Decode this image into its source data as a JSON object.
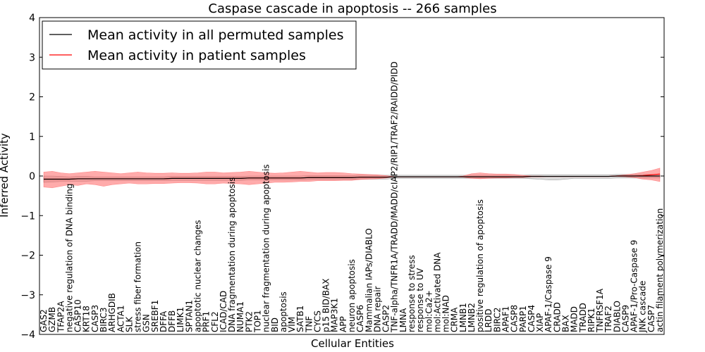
{
  "chart_data": {
    "type": "line",
    "title": "Caspase cascade in apoptosis -- 266 samples",
    "xlabel": "Cellular Entities",
    "ylabel": "Inferred Activity",
    "ylim": [
      -4,
      4
    ],
    "yticks": [
      -4,
      -3,
      -2,
      -1,
      0,
      1,
      2,
      3,
      4
    ],
    "grid": false,
    "legend_position": "top-left",
    "legend": [
      "Mean activity in all permuted samples",
      "Mean activity in patient samples"
    ],
    "categories": [
      "GAS2",
      "GZMB",
      "TFAP2A",
      "negative regulation of DNA binding",
      "CASP10",
      "KRT18",
      "CASP3",
      "BIRC3",
      "ARHGDIB",
      "ACTA1",
      "SLK",
      "stress fiber formation",
      "GSN",
      "SREBF1",
      "DFFA",
      "DFFB",
      "LIMK1",
      "SPTAN1",
      "apoptotic nuclear changes",
      "PRF1",
      "CFL2",
      "ICAD/CAD",
      "DNA fragmentation during apoptosis",
      "NUMA1",
      "PTK2",
      "TOP1",
      "nuclear fragmentation during apoptosis",
      "BID",
      "apoptosis",
      "VIM",
      "SATB1",
      "TNF",
      "CYCS",
      "p15 BID/BAX",
      "MAP3K1",
      "APP",
      "neuron apoptosis",
      "CASP6",
      "Mammalian IAPs/DIABLO",
      "DNA repair",
      "CASP2",
      "TNF-alpha/TNFR1A/TRADD/MADD/cIAP2/RIP1/TRAF2/RAIDD/PIDD",
      "LMNA",
      "response to stress",
      "response to UV",
      "mol:Ca2+",
      "mol:Activated DNA",
      "mol:NAD",
      "CRMA",
      "LMNB1",
      "LMNB2",
      "positive regulation of apoptosis",
      "LRDD",
      "BIRC2",
      "APAF1",
      "CASP8",
      "PARP1",
      "CASP4",
      "XIAP",
      "APAF-1/Caspase 9",
      "CRADD",
      "BAX",
      "MADD",
      "TRADD",
      "RIPK1",
      "TNFRSF1A",
      "TRAF2",
      "DIABLO",
      "CASP9",
      "APAF-1/Pro-Caspase 9",
      "JNK cascade",
      "CASP7",
      "actin filament polymerization"
    ],
    "series": [
      {
        "name": "Mean activity in all permuted samples",
        "color": "#000000",
        "band_color": "#cccccc",
        "values": [
          -0.08,
          -0.08,
          -0.08,
          -0.08,
          -0.07,
          -0.07,
          -0.07,
          -0.07,
          -0.07,
          -0.07,
          -0.07,
          -0.07,
          -0.07,
          -0.07,
          -0.07,
          -0.06,
          -0.06,
          -0.06,
          -0.06,
          -0.06,
          -0.06,
          -0.06,
          -0.06,
          -0.06,
          -0.05,
          -0.05,
          -0.05,
          -0.05,
          -0.05,
          -0.05,
          -0.05,
          -0.04,
          -0.04,
          -0.04,
          -0.04,
          -0.04,
          -0.04,
          -0.03,
          -0.03,
          -0.03,
          -0.03,
          -0.02,
          -0.02,
          -0.02,
          -0.02,
          -0.02,
          -0.02,
          -0.02,
          -0.02,
          -0.02,
          -0.02,
          -0.02,
          -0.02,
          -0.02,
          -0.02,
          -0.02,
          -0.02,
          -0.01,
          -0.01,
          -0.01,
          -0.01,
          -0.01,
          -0.01,
          -0.01,
          -0.01,
          -0.01,
          -0.01,
          0.0,
          0.0,
          0.0,
          0.0,
          0.0,
          0.0
        ],
        "lower": [
          -0.16,
          -0.15,
          -0.14,
          -0.14,
          -0.13,
          -0.13,
          -0.12,
          -0.12,
          -0.12,
          -0.12,
          -0.12,
          -0.12,
          -0.12,
          -0.12,
          -0.12,
          -0.11,
          -0.11,
          -0.11,
          -0.11,
          -0.11,
          -0.11,
          -0.11,
          -0.11,
          -0.11,
          -0.1,
          -0.1,
          -0.1,
          -0.1,
          -0.1,
          -0.1,
          -0.1,
          -0.09,
          -0.09,
          -0.09,
          -0.09,
          -0.09,
          -0.09,
          -0.08,
          -0.08,
          -0.08,
          -0.08,
          -0.06,
          -0.06,
          -0.06,
          -0.06,
          -0.06,
          -0.06,
          -0.06,
          -0.06,
          -0.06,
          -0.06,
          -0.06,
          -0.06,
          -0.06,
          -0.06,
          -0.06,
          -0.06,
          -0.07,
          -0.08,
          -0.1,
          -0.1,
          -0.08,
          -0.06,
          -0.06,
          -0.06,
          -0.06,
          -0.06,
          -0.05,
          -0.05,
          -0.05,
          -0.05,
          -0.05,
          -0.05
        ],
        "upper": [
          0.0,
          0.0,
          -0.01,
          -0.02,
          -0.01,
          -0.01,
          -0.02,
          -0.02,
          -0.02,
          -0.02,
          -0.02,
          -0.02,
          -0.02,
          -0.02,
          -0.02,
          -0.01,
          -0.01,
          -0.01,
          -0.01,
          -0.01,
          -0.01,
          -0.01,
          -0.01,
          -0.01,
          0.0,
          0.0,
          0.0,
          0.0,
          0.0,
          0.0,
          0.0,
          0.01,
          0.01,
          0.01,
          0.01,
          0.01,
          0.01,
          0.02,
          0.02,
          0.02,
          0.02,
          0.02,
          0.02,
          0.02,
          0.02,
          0.02,
          0.02,
          0.02,
          0.02,
          0.02,
          0.02,
          0.02,
          0.02,
          0.02,
          0.02,
          0.02,
          0.02,
          0.03,
          0.03,
          0.03,
          0.03,
          0.03,
          0.03,
          0.03,
          0.03,
          0.03,
          0.03,
          0.04,
          0.04,
          0.04,
          0.04,
          0.04,
          0.04
        ]
      },
      {
        "name": "Mean activity in patient samples",
        "color": "#ff0000",
        "band_color": "#ff6666",
        "values": [
          -0.08,
          -0.08,
          -0.08,
          -0.08,
          -0.07,
          -0.07,
          -0.07,
          -0.07,
          -0.07,
          -0.07,
          -0.07,
          -0.07,
          -0.07,
          -0.07,
          -0.07,
          -0.06,
          -0.06,
          -0.06,
          -0.06,
          -0.06,
          -0.06,
          -0.06,
          -0.06,
          -0.06,
          -0.05,
          -0.05,
          -0.05,
          -0.05,
          -0.05,
          -0.05,
          -0.05,
          -0.04,
          -0.04,
          -0.04,
          -0.04,
          -0.04,
          -0.04,
          -0.03,
          -0.03,
          -0.03,
          -0.03,
          -0.02,
          -0.02,
          -0.02,
          -0.02,
          -0.02,
          -0.02,
          -0.02,
          -0.02,
          -0.02,
          -0.02,
          -0.02,
          -0.02,
          -0.02,
          -0.02,
          -0.02,
          -0.02,
          -0.01,
          -0.01,
          -0.01,
          -0.01,
          -0.01,
          -0.01,
          -0.01,
          -0.01,
          -0.01,
          -0.01,
          0.0,
          0.0,
          0.0,
          0.01,
          0.03,
          0.05
        ],
        "lower": [
          -0.28,
          -0.3,
          -0.26,
          -0.22,
          -0.24,
          -0.2,
          -0.22,
          -0.26,
          -0.22,
          -0.2,
          -0.18,
          -0.2,
          -0.2,
          -0.19,
          -0.19,
          -0.18,
          -0.17,
          -0.17,
          -0.18,
          -0.2,
          -0.2,
          -0.18,
          -0.19,
          -0.2,
          -0.22,
          -0.2,
          -0.18,
          -0.16,
          -0.16,
          -0.15,
          -0.14,
          -0.14,
          -0.12,
          -0.12,
          -0.12,
          -0.11,
          -0.11,
          -0.09,
          -0.08,
          -0.07,
          -0.05,
          -0.02,
          -0.02,
          -0.02,
          -0.02,
          -0.02,
          -0.02,
          -0.02,
          -0.02,
          -0.03,
          -0.06,
          -0.07,
          -0.06,
          -0.05,
          -0.05,
          -0.04,
          -0.04,
          -0.02,
          -0.02,
          -0.01,
          -0.01,
          -0.01,
          -0.01,
          -0.01,
          -0.01,
          -0.01,
          -0.01,
          -0.01,
          -0.02,
          -0.04,
          -0.08,
          -0.1,
          -0.14
        ],
        "upper": [
          0.1,
          0.12,
          0.08,
          0.06,
          0.08,
          0.1,
          0.12,
          0.1,
          0.08,
          0.06,
          0.08,
          0.1,
          0.08,
          0.07,
          0.07,
          0.08,
          0.07,
          0.07,
          0.08,
          0.1,
          0.1,
          0.08,
          0.09,
          0.1,
          0.12,
          0.1,
          0.08,
          0.07,
          0.08,
          0.1,
          0.12,
          0.1,
          0.08,
          0.09,
          0.09,
          0.08,
          0.06,
          0.05,
          0.04,
          0.03,
          0.01,
          -0.02,
          -0.02,
          -0.02,
          -0.02,
          -0.02,
          -0.02,
          -0.02,
          -0.02,
          0.0,
          0.06,
          0.08,
          0.06,
          0.05,
          0.05,
          0.04,
          0.02,
          0.0,
          0.0,
          -0.01,
          -0.01,
          -0.01,
          -0.01,
          -0.01,
          -0.01,
          -0.01,
          -0.01,
          0.01,
          0.03,
          0.06,
          0.1,
          0.14,
          0.2
        ]
      }
    ]
  }
}
